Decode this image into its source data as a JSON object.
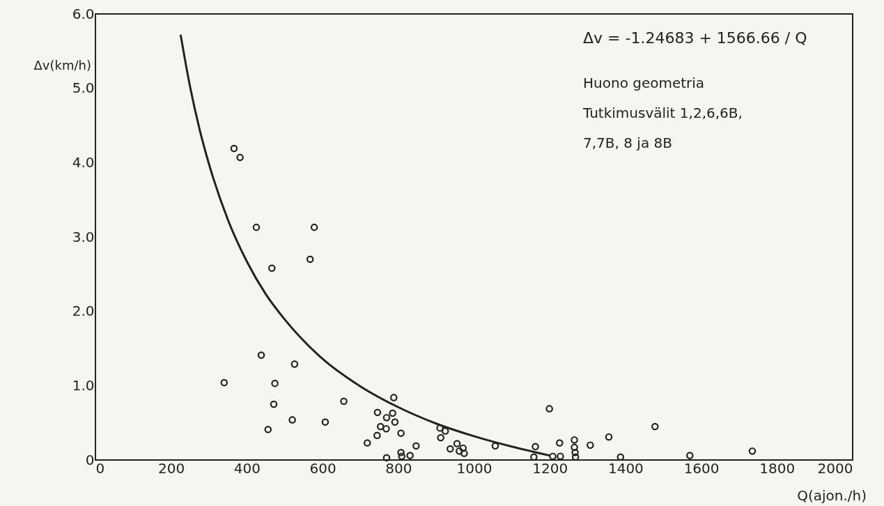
{
  "chart_data": {
    "type": "scatter",
    "xlabel": "Q(ajon./h)",
    "ylabel": "Δv(km/h)",
    "xlim": [
      0,
      2000
    ],
    "xticks": [
      0,
      200,
      400,
      600,
      800,
      1000,
      1200,
      1400,
      1600,
      1800,
      2000
    ],
    "ylim": [
      0,
      6
    ],
    "yticks": [
      0,
      {
        "value": 1,
        "label": "1.0"
      },
      {
        "value": 2,
        "label": "2.0"
      },
      {
        "value": 3,
        "label": "3.0"
      },
      {
        "value": 4,
        "label": "4.0"
      },
      {
        "value": 5,
        "label": "5.0"
      },
      {
        "value": 6,
        "label": "6.0"
      }
    ],
    "grid": false,
    "annotations": [
      "Δv = -1.24683 + 1566.66 / Q",
      "Huono geometria",
      "Tutkimusvälit 1,2,6,6B,",
      "7,7B, 8 ja 8B"
    ],
    "series": [
      {
        "color": "#222222",
        "marker": "circle",
        "x": [
          366,
          382,
          425,
          578,
          567,
          466,
          438,
          526,
          340,
          474,
          656,
          471,
          788,
          745,
          785,
          769,
          791,
          520,
          607,
          753,
          768,
          456,
          807,
          744,
          718,
          847,
          910,
          924,
          912,
          955,
          937,
          971,
          961,
          974,
          769,
          807,
          809,
          831,
          1199,
          1056,
          1162,
          1158,
          1208,
          1228,
          1226,
          1265,
          1265,
          1267,
          1268,
          1307,
          1356,
          1478,
          1387,
          1570,
          1735
        ],
        "values": [
          4.19,
          4.07,
          3.13,
          3.13,
          2.7,
          2.58,
          1.41,
          1.29,
          1.04,
          1.03,
          0.79,
          0.75,
          0.84,
          0.64,
          0.63,
          0.57,
          0.51,
          0.54,
          0.51,
          0.45,
          0.42,
          0.41,
          0.36,
          0.33,
          0.23,
          0.19,
          0.43,
          0.39,
          0.3,
          0.22,
          0.15,
          0.16,
          0.12,
          0.09,
          0.03,
          0.1,
          0.05,
          0.06,
          0.69,
          0.19,
          0.18,
          0.04,
          0.05,
          0.05,
          0.23,
          0.27,
          0.17,
          0.1,
          0.04,
          0.2,
          0.31,
          0.45,
          0.04,
          0.06,
          0.12
        ]
      },
      {
        "type": "line",
        "color": "#222222",
        "line_style": "solid",
        "marker": "none",
        "x": [
          225,
          250,
          275,
          300,
          350,
          400,
          450,
          500,
          600,
          700,
          800,
          900,
          1000,
          1100,
          1200
        ],
        "values": [
          5.72,
          5.02,
          4.45,
          3.98,
          3.23,
          2.67,
          2.23,
          1.89,
          1.36,
          0.99,
          0.71,
          0.49,
          0.32,
          0.18,
          0.06
        ]
      }
    ]
  }
}
